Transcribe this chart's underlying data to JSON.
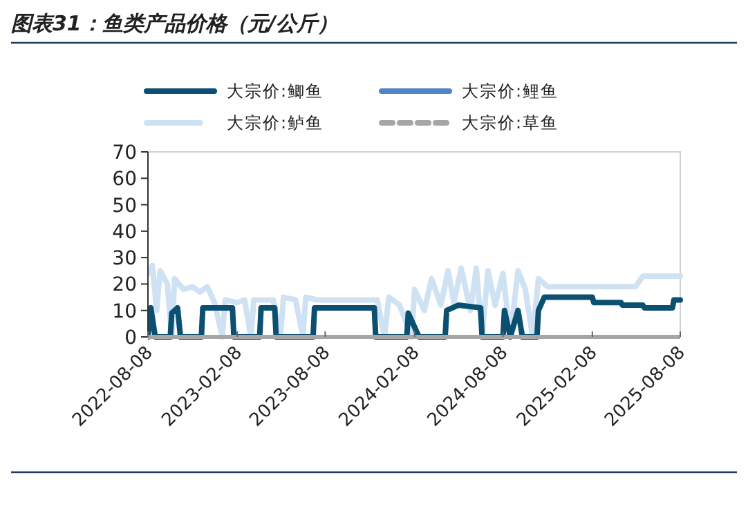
{
  "chart_data": {
    "type": "line",
    "title": "图表31：鱼类产品价格（元/公斤）",
    "ylim": [
      0,
      70
    ],
    "yticks": [
      0,
      10,
      20,
      30,
      40,
      50,
      60,
      70
    ],
    "xlim": [
      "2022-08-08",
      "2025-08-08"
    ],
    "xticks": [
      {
        "value": "2022-08-08",
        "label": "2022-08-08"
      },
      {
        "value": "2023-02-08",
        "label": "2023-02-08"
      },
      {
        "value": "2023-08-08",
        "label": "2023-08-08"
      },
      {
        "value": "2024-02-08",
        "label": "2024-02-08"
      },
      {
        "value": "2024-08-08",
        "label": "2024-08-08"
      },
      {
        "value": "2025-02-08",
        "label": "2025-02-08"
      },
      {
        "value": "2025-08-08",
        "label": "2025-08-08"
      }
    ],
    "grid": false,
    "legend": "top",
    "series": [
      {
        "name": "大宗价:鲫鱼",
        "color": "#0b4f71",
        "line_style": "solid",
        "x": [
          "2022-08-08",
          "2022-08-14",
          "2022-08-23",
          "2022-09-23",
          "2022-09-26",
          "2022-10-08",
          "2022-10-14",
          "2022-11-26",
          "2022-11-29",
          "2023-01-29",
          "2023-02-01",
          "2023-03-26",
          "2023-03-29",
          "2023-04-26",
          "2023-04-29",
          "2023-07-14",
          "2023-07-17",
          "2023-11-17",
          "2023-11-20",
          "2024-01-23",
          "2024-01-26",
          "2024-02-17",
          "2024-04-11",
          "2024-04-14",
          "2024-05-08",
          "2024-06-23",
          "2024-06-26",
          "2024-08-08",
          "2024-08-11",
          "2024-08-23",
          "2024-09-08",
          "2024-09-17",
          "2024-10-17",
          "2024-10-20",
          "2024-11-01",
          "2024-11-23",
          "2025-02-08",
          "2025-02-11",
          "2025-04-08",
          "2025-04-11",
          "2025-05-23",
          "2025-05-26",
          "2025-07-23",
          "2025-07-26",
          "2025-08-08"
        ],
        "values": [
          0,
          11,
          0,
          0,
          9,
          11,
          0,
          0,
          11,
          11,
          0,
          0,
          11,
          11,
          0,
          0,
          11,
          11,
          0,
          0,
          9,
          0,
          0,
          10,
          12,
          11,
          0,
          0,
          10,
          0,
          10,
          0,
          0,
          10,
          15,
          15,
          15,
          13,
          13,
          12,
          12,
          11,
          11,
          14,
          14
        ]
      },
      {
        "name": "大宗价:鲤鱼",
        "color": "#4f87c4",
        "line_style": "solid"
      },
      {
        "name": "大宗价:鲈鱼",
        "color": "#cfe2f3",
        "line_style": "solid",
        "x": [
          "2022-08-08",
          "2022-08-17",
          "2022-08-26",
          "2022-09-02",
          "2022-09-17",
          "2022-09-26",
          "2022-10-02",
          "2022-10-20",
          "2022-11-08",
          "2022-11-23",
          "2022-12-08",
          "2022-12-23",
          "2023-01-08",
          "2023-01-14",
          "2023-02-08",
          "2023-02-23",
          "2023-03-08",
          "2023-03-14",
          "2023-04-23",
          "2023-05-08",
          "2023-05-14",
          "2023-06-08",
          "2023-06-23",
          "2023-06-29",
          "2023-07-23",
          "2023-10-08",
          "2023-11-23",
          "2023-12-08",
          "2023-12-17",
          "2024-01-08",
          "2024-02-02",
          "2024-02-08",
          "2024-02-28",
          "2024-03-14",
          "2024-04-02",
          "2024-04-17",
          "2024-04-29",
          "2024-05-14",
          "2024-06-02",
          "2024-06-14",
          "2024-06-26",
          "2024-07-08",
          "2024-07-23",
          "2024-08-08",
          "2024-08-23",
          "2024-09-08",
          "2024-09-23",
          "2024-10-08",
          "2024-10-20",
          "2024-11-08",
          "2025-05-08",
          "2025-05-23",
          "2025-08-08"
        ],
        "values": [
          24,
          27,
          10,
          25,
          20,
          0,
          22,
          18,
          19,
          17,
          19,
          13,
          0,
          14,
          13,
          14,
          0,
          14,
          14,
          0,
          15,
          14,
          0,
          15,
          14,
          14,
          14,
          0,
          15,
          12,
          0,
          18,
          10,
          22,
          12,
          25,
          13,
          26,
          10,
          26,
          0,
          25,
          12,
          24,
          0,
          25,
          18,
          0,
          22,
          19,
          19,
          23,
          23
        ]
      },
      {
        "name": "大宗价:草鱼",
        "color": "#a6a6a6",
        "line_style": "dashed"
      }
    ]
  }
}
